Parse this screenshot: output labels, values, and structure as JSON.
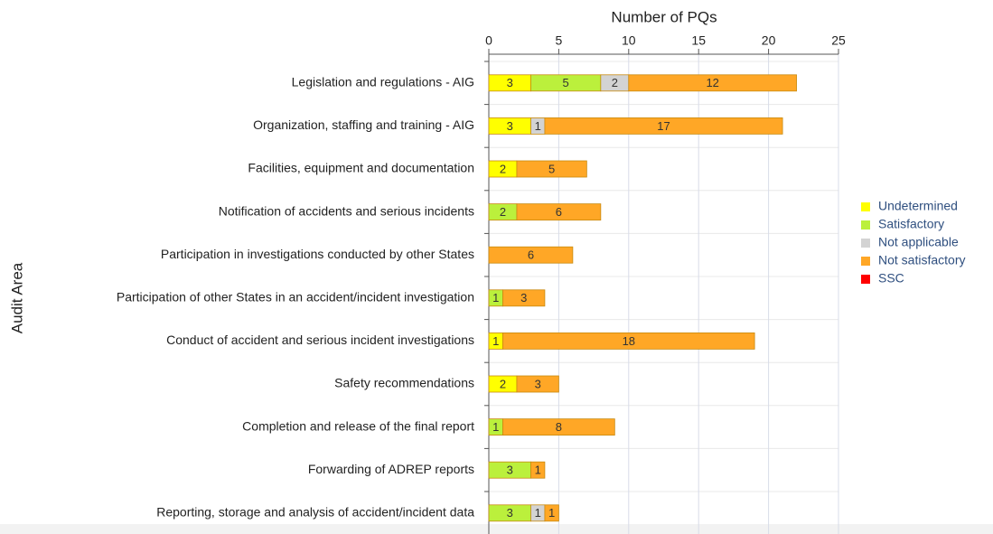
{
  "chart_data": {
    "type": "bar",
    "orientation": "horizontal",
    "stacked": true,
    "title": "Number of PQs",
    "y_label": "Audit Area",
    "categories": [
      "Legislation and regulations - AIG",
      "Organization, staffing and training - AIG",
      "Facilities, equipment and documentation",
      "Notification of accidents and serious incidents",
      "Participation in investigations conducted by other States",
      "Participation of other States in an accident/incident investigation",
      "Conduct of accident and serious incident investigations",
      "Safety recommendations",
      "Completion and release of the final report",
      "Forwarding of ADREP reports",
      "Reporting, storage and analysis of accident/incident data"
    ],
    "series": [
      {
        "name": "Undetermined",
        "color": "#ffff00",
        "values": [
          3,
          3,
          2,
          null,
          null,
          null,
          1,
          2,
          null,
          null,
          null
        ]
      },
      {
        "name": "Satisfactory",
        "color": "#bbf03c",
        "values": [
          5,
          null,
          null,
          2,
          null,
          1,
          null,
          null,
          1,
          3,
          3
        ]
      },
      {
        "name": "Not applicable",
        "color": "#d3d3d3",
        "values": [
          2,
          1,
          null,
          null,
          null,
          null,
          null,
          null,
          null,
          null,
          1
        ]
      },
      {
        "name": "Not satisfactory",
        "color": "#ffa726",
        "values": [
          12,
          17,
          5,
          6,
          6,
          3,
          18,
          3,
          8,
          1,
          1
        ]
      },
      {
        "name": "SSC",
        "color": "#ff0000",
        "values": [
          null,
          null,
          null,
          null,
          null,
          null,
          null,
          null,
          null,
          null,
          null
        ]
      }
    ],
    "xlim": [
      0,
      25
    ],
    "xticks": [
      0,
      5,
      10,
      15,
      20,
      25
    ],
    "grid": true,
    "legend": "right"
  }
}
